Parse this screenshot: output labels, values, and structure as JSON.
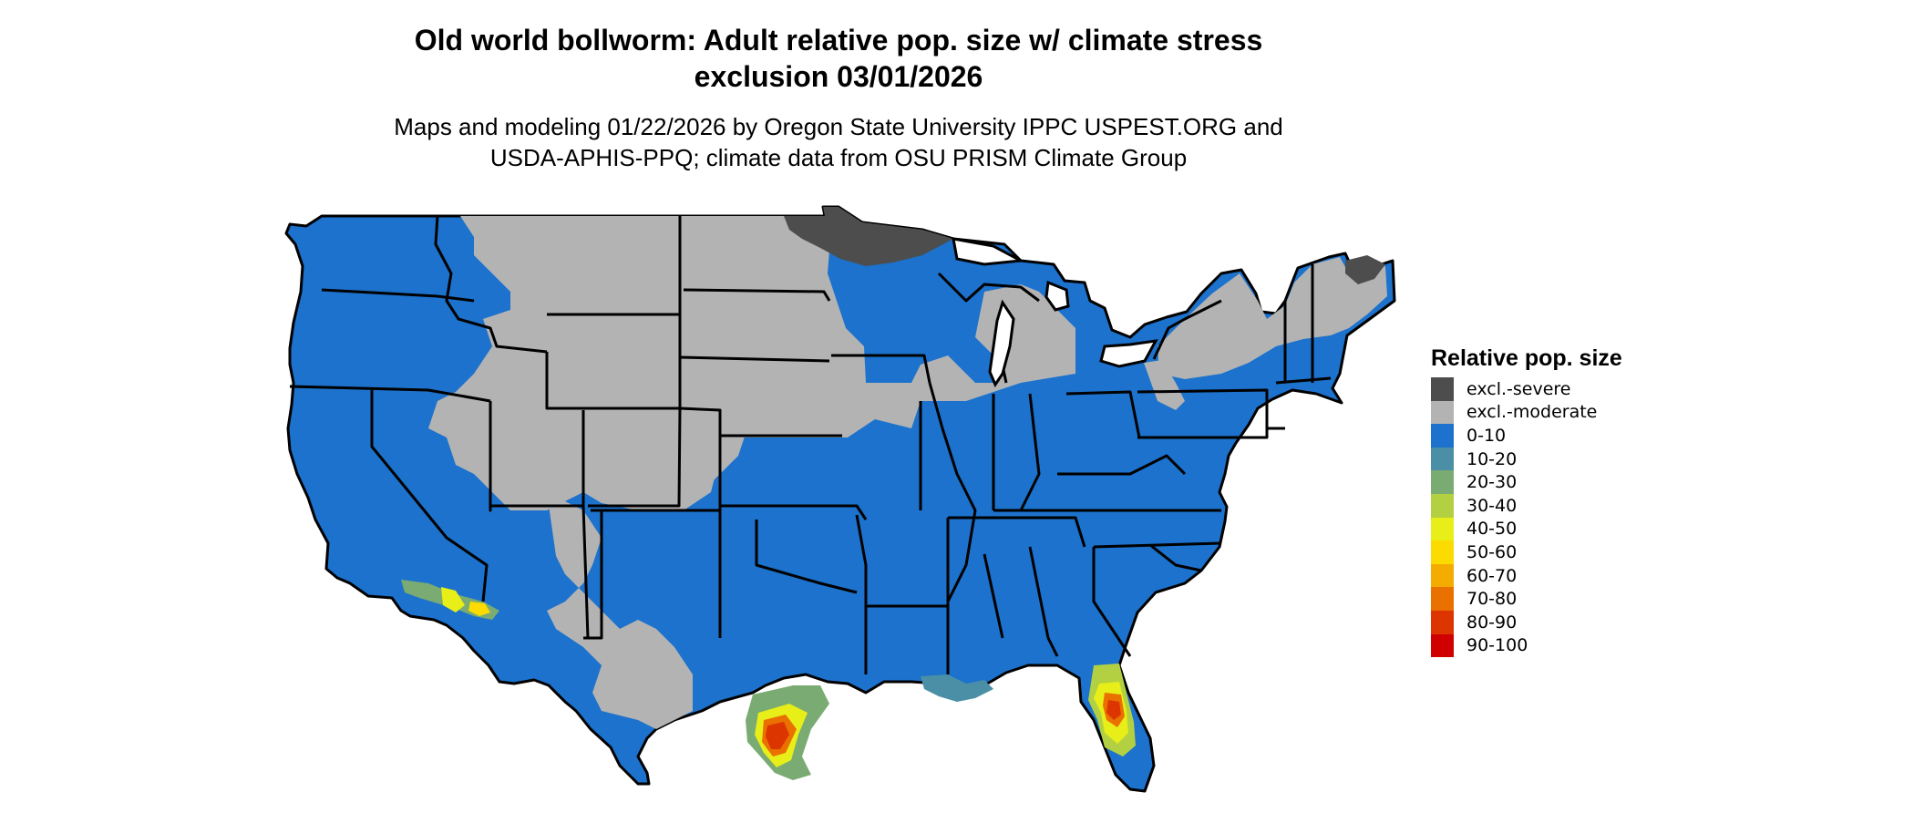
{
  "title_line1": "Old world bollworm: Adult relative pop. size w/ climate stress",
  "title_line2": "exclusion 03/01/2026",
  "subtitle_line1": "Maps and modeling 01/22/2026 by Oregon State University IPPC USPEST.ORG and",
  "subtitle_line2": "USDA-APHIS-PPQ; climate data from OSU PRISM Climate Group",
  "legend": {
    "title": "Relative pop. size",
    "items": [
      {
        "label": "excl.-severe",
        "color": "#4d4d4d"
      },
      {
        "label": "excl.-moderate",
        "color": "#b3b3b3"
      },
      {
        "label": "0-10",
        "color": "#1c72cc"
      },
      {
        "label": "10-20",
        "color": "#4a8fa6"
      },
      {
        "label": "20-30",
        "color": "#7aab72"
      },
      {
        "label": "30-40",
        "color": "#b2d041"
      },
      {
        "label": "40-50",
        "color": "#e8ee18"
      },
      {
        "label": "50-60",
        "color": "#fbdb00"
      },
      {
        "label": "60-70",
        "color": "#f5ac00"
      },
      {
        "label": "70-80",
        "color": "#ea7000"
      },
      {
        "label": "80-90",
        "color": "#dc3500"
      },
      {
        "label": "90-100",
        "color": "#d10000"
      }
    ]
  }
}
